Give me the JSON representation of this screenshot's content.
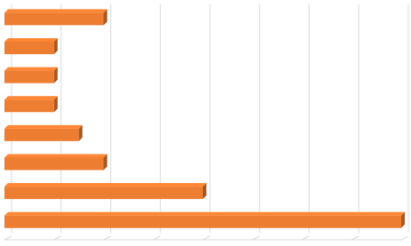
{
  "chart_data": {
    "type": "bar",
    "orientation": "horizontal",
    "categories": [
      null,
      null,
      null,
      null,
      null,
      null,
      null,
      null
    ],
    "values": [
      2,
      1,
      1,
      1,
      1.5,
      2,
      4,
      8
    ],
    "color": "#ed7d31",
    "xlim": [
      0,
      8
    ],
    "xticks": [
      0,
      1,
      2,
      3,
      4,
      5,
      6,
      7,
      8
    ],
    "grid": true
  }
}
